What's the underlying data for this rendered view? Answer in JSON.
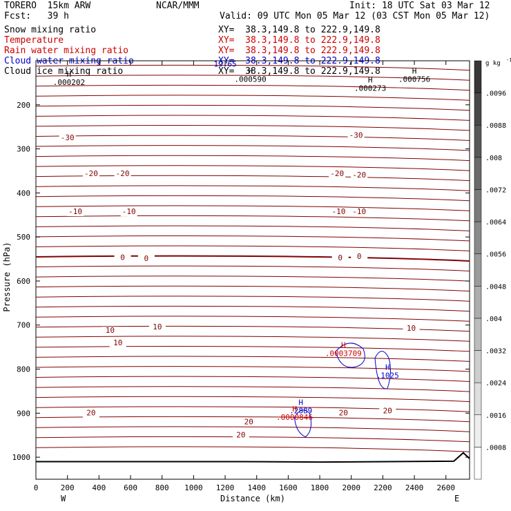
{
  "header": {
    "model": "TORERO  15km ARW",
    "org": "NCAR/MMM",
    "init": "Init: 18 UTC Sat 03 Mar 12",
    "fcst": "Fcst:   39 h",
    "valid": "Valid: 09 UTC Mon 05 Mar 12 (03 CST Mon 05 Mar 12)"
  },
  "fields": [
    {
      "name": "Snow mixing ratio",
      "color": "#000000",
      "xy": "XY=  38.3,149.8 to 222.9,149.8",
      "xy_color": "#000000"
    },
    {
      "name": "Temperature",
      "color": "#cc0000",
      "xy": "XY=  38.3,149.8 to 222.9,149.8",
      "xy_color": "#cc0000"
    },
    {
      "name": "Rain water mixing ratio",
      "color": "#cc0000",
      "xy": "XY=  38.3,149.8 to 222.9,149.8",
      "xy_color": "#cc0000"
    },
    {
      "name": "Cloud water mixing ratio",
      "color": "#0000cc",
      "xy": "XY=  38.3,149.8 to 222.9,149.8",
      "xy_color": "#0000cc"
    },
    {
      "name": "Cloud ice mixing ratio",
      "color": "#000000",
      "xy": "XY=  38.3,149.8 to 222.9,149.8",
      "xy_color": "#000000"
    }
  ],
  "chart_data": {
    "type": "contour_cross_section",
    "xlabel": "Distance (km)",
    "ylabel": "Pressure (hPa)",
    "xlim": [
      0,
      2750
    ],
    "ylim": [
      1050,
      100
    ],
    "x_ticks": [
      0,
      200,
      400,
      600,
      800,
      1000,
      1200,
      1400,
      1600,
      1800,
      2000,
      2200,
      2400,
      2600
    ],
    "y_ticks": [
      200,
      300,
      400,
      500,
      600,
      700,
      800,
      900,
      1000
    ],
    "x_end_labels": {
      "left": "W",
      "right": "E"
    },
    "colorbar": {
      "unit": "g kg",
      "unit_exp": "-1",
      "ticks": [
        ".0008",
        ".0016",
        ".0024",
        ".0032",
        ".004",
        ".0048",
        ".0056",
        ".0064",
        ".0072",
        ".008",
        ".0088",
        ".0096"
      ],
      "values": [
        0.0008,
        0.0016,
        0.0024,
        0.0032,
        0.004,
        0.0048,
        0.0056,
        0.0064,
        0.0072,
        0.008,
        0.0088,
        0.0096
      ]
    },
    "temperature_contours": [
      {
        "label": "-30",
        "labels_at": [
          {
            "x": 200,
            "p": 280
          },
          {
            "x": 2030,
            "p": 275
          }
        ]
      },
      {
        "label": "-20",
        "labels_at": [
          {
            "x": 350,
            "p": 362
          },
          {
            "x": 550,
            "p": 362
          },
          {
            "x": 1910,
            "p": 362
          },
          {
            "x": 2050,
            "p": 365
          }
        ]
      },
      {
        "label": "-10",
        "labels_at": [
          {
            "x": 250,
            "p": 448
          },
          {
            "x": 590,
            "p": 448
          },
          {
            "x": 1920,
            "p": 448
          },
          {
            "x": 2050,
            "p": 448
          }
        ]
      },
      {
        "label": "0",
        "labels_at": [
          {
            "x": 550,
            "p": 552
          },
          {
            "x": 700,
            "p": 555
          },
          {
            "x": 1930,
            "p": 553
          },
          {
            "x": 2050,
            "p": 550
          }
        ]
      },
      {
        "label": "10",
        "labels_at": [
          {
            "x": 470,
            "p": 718
          },
          {
            "x": 770,
            "p": 710
          },
          {
            "x": 2380,
            "p": 713
          },
          {
            "x": 520,
            "p": 746
          }
        ]
      },
      {
        "label": "20",
        "labels_at": [
          {
            "x": 350,
            "p": 905
          },
          {
            "x": 1350,
            "p": 925
          },
          {
            "x": 1950,
            "p": 905
          },
          {
            "x": 2230,
            "p": 900
          },
          {
            "x": 1300,
            "p": 955
          }
        ]
      }
    ],
    "extrema": [
      {
        "mark": "H",
        "value": ".000202",
        "x": 210,
        "p": 155,
        "color": "#000000"
      },
      {
        "mark": "H",
        "value": ".000590",
        "x": 1360,
        "p": 148,
        "color": "#000000"
      },
      {
        "mark": "H",
        "value": ".000756",
        "x": 2400,
        "p": 148,
        "color": "#000000"
      },
      {
        "mark": "H",
        "value": ".000273",
        "x": 2120,
        "p": 168,
        "color": "#000000"
      },
      {
        "mark": "",
        "value": "19.65",
        "x": 1200,
        "p": 113,
        "color": "#0000cc"
      },
      {
        "mark": "H",
        "value": ".0003709",
        "x": 1950,
        "p": 770,
        "color": "#cc0000"
      },
      {
        "mark": "H",
        "value": ".1025",
        "x": 2230,
        "p": 820,
        "color": "#0000cc"
      },
      {
        "mark": "H",
        "value": ".2889",
        "x": 1680,
        "p": 900,
        "color": "#0000cc"
      },
      {
        "mark": "H",
        "value": ".0000846",
        "x": 1640,
        "p": 915,
        "color": "#cc0000"
      }
    ]
  }
}
